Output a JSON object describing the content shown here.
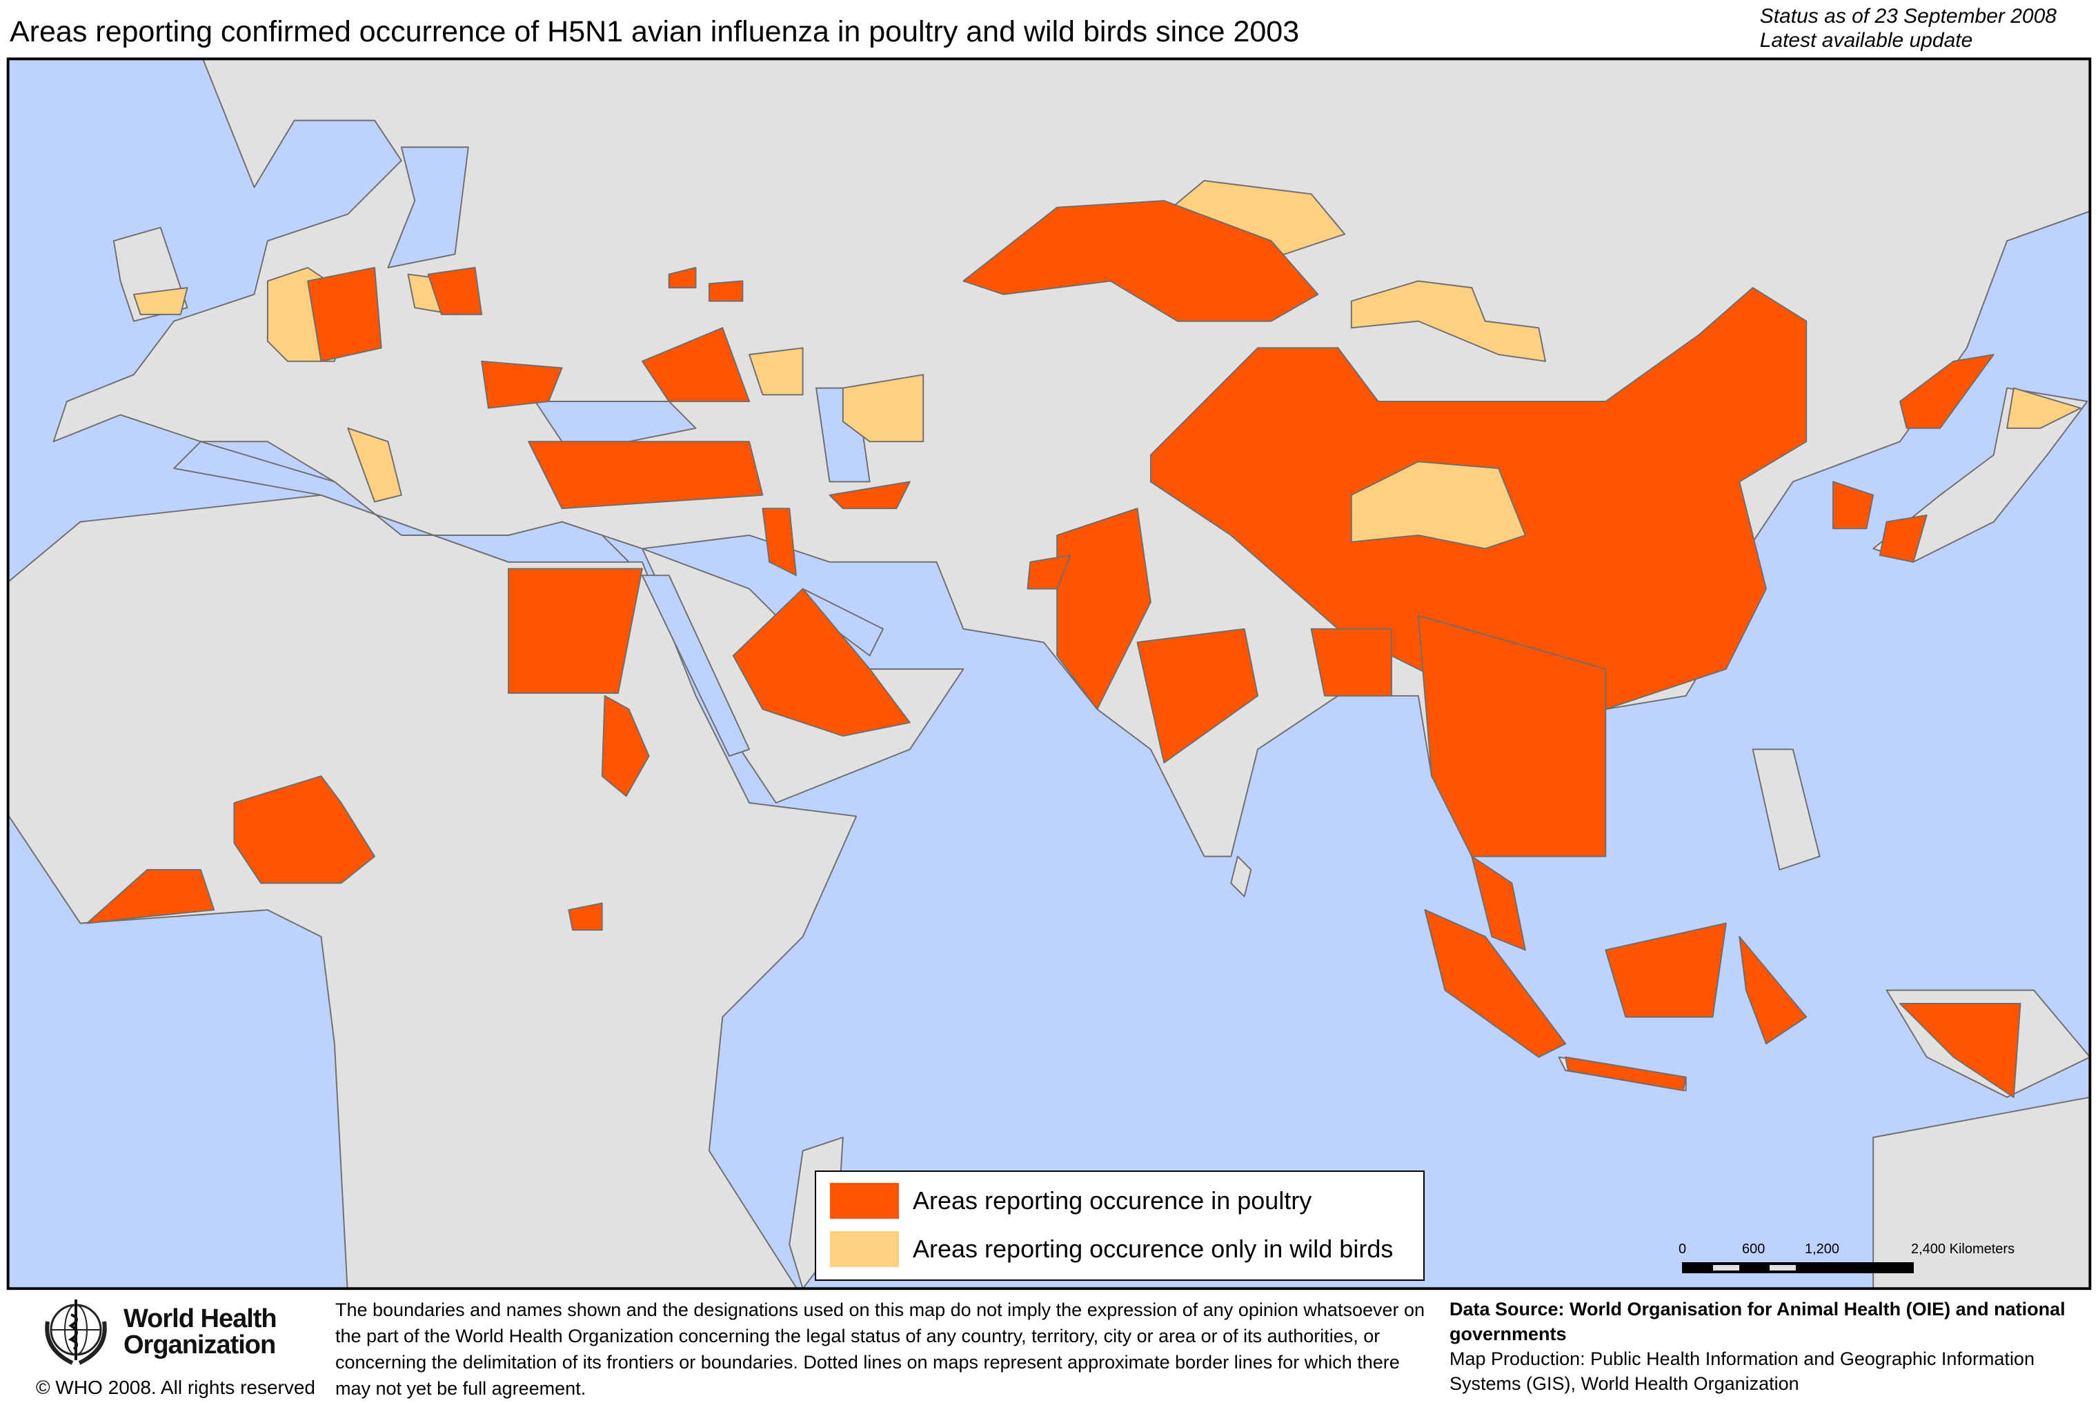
{
  "header": {
    "title": "Areas reporting confirmed occurrence of H5N1 avian influenza in poultry and wild birds since 2003",
    "status_line1": "Status as of 23 September 2008",
    "status_line2": "Latest available update"
  },
  "colors": {
    "ocean": "#bed2ff",
    "land": "#e1e1e1",
    "border": "#6e6e6e",
    "poultry": "#ff5500",
    "wild_birds": "#ffd080"
  },
  "legend": {
    "items": [
      {
        "label": "Areas reporting occurence in poultry",
        "color": "#ff5500"
      },
      {
        "label": "Areas reporting occurence only in wild birds",
        "color": "#ffd080"
      }
    ]
  },
  "scale_bar": {
    "ticks": [
      "0",
      "600",
      "1,200",
      "2,400 Kilometers"
    ]
  },
  "footer": {
    "org_name_line1": "World Health",
    "org_name_line2": "Organization",
    "copyright": "© WHO 2008. All rights reserved",
    "disclaimer": "The boundaries and names shown and the designations used on this map do not imply the expression of any opinion whatsoever on the part of the World Health Organization concerning the legal status of any country, territory, city or area or of its authorities, or concerning the delimitation of its frontiers or boundaries.  Dotted lines on maps represent approximate border lines for which there may not yet be full agreement.",
    "data_source": "Data Source: World Organisation for Animal Health (OIE) and national governments",
    "map_production": "Map Production: Public Health Information and Geographic Information Systems (GIS), World Health Organization"
  }
}
